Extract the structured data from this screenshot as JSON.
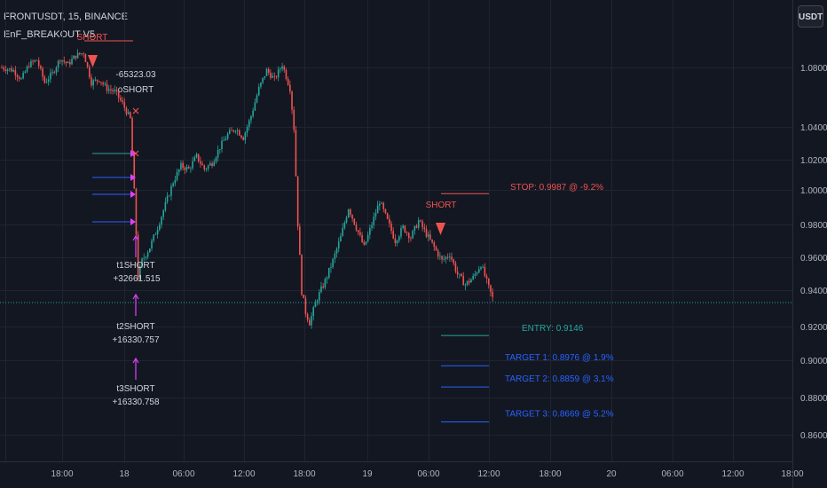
{
  "header": {
    "symbol": "FRONTUSDT, 15, BINANCE",
    "indicator": "EnF_BREAKOUT V5",
    "currency_button": "USDT"
  },
  "colors": {
    "background": "#131722",
    "grid": "#1f2430",
    "up": "#26a69a",
    "down": "#ef5350",
    "stop": "#ef5350",
    "entry": "#26a69a",
    "target": "#2962ff",
    "signal": "#e040fb",
    "axis_text": "#b2b5be"
  },
  "chart_data": {
    "type": "candlestick",
    "y_scale": "log",
    "grid": true,
    "x_ticks": [
      "18:00",
      "18",
      "06:00",
      "12:00",
      "18:00",
      "19",
      "06:00",
      "12:00",
      "18:00",
      "20",
      "06:00",
      "12:00",
      "18:00"
    ],
    "y_ticks": [
      "1.0800",
      "1.0400",
      "1.0200",
      "1.0000",
      "0.9800",
      "0.9600",
      "0.9400",
      "0.9200",
      "0.9000",
      "0.8800",
      "0.8600"
    ],
    "price_line": 0.9335,
    "trade_levels": [
      {
        "name": "stop",
        "label": "STOP: 0.9987 @ -9.2%",
        "value": 0.9987
      },
      {
        "name": "entry",
        "label": "ENTRY: 0.9146",
        "value": 0.9146
      },
      {
        "name": "target-1",
        "label": "TARGET 1: 0.8976 @ 1.9%",
        "value": 0.8976
      },
      {
        "name": "target-2",
        "label": "TARGET 2: 0.8859 @ 3.1%",
        "value": 0.8859
      },
      {
        "name": "target-3",
        "label": "TARGET 3: 0.8669 @ 5.2%",
        "value": 0.8669
      }
    ],
    "annotations": [
      {
        "name": "short-label-1",
        "text": "SHORT"
      },
      {
        "name": "exit-value-label",
        "text": "-65323.03"
      },
      {
        "name": "exit-tag-label",
        "text": "oSHORT"
      },
      {
        "name": "short-label-2",
        "text": "SHORT"
      },
      {
        "name": "t1-tag-label",
        "text": "t1SHORT"
      },
      {
        "name": "t1-value-label",
        "text": "+32661.515"
      },
      {
        "name": "t2-tag-label",
        "text": "t2SHORT"
      },
      {
        "name": "t2-value-label",
        "text": "+16330.757"
      },
      {
        "name": "t3-tag-label",
        "text": "t3SHORT"
      },
      {
        "name": "t3-value-label",
        "text": "+16330.758"
      }
    ],
    "price_path": [
      [
        0,
        1.08
      ],
      [
        6,
        1.078
      ],
      [
        10,
        1.072
      ],
      [
        14,
        1.082
      ],
      [
        18,
        1.085
      ],
      [
        22,
        1.07
      ],
      [
        26,
        1.076
      ],
      [
        30,
        1.086
      ],
      [
        34,
        1.082
      ],
      [
        38,
        1.088
      ],
      [
        42,
        1.09
      ],
      [
        44,
        1.08
      ],
      [
        46,
        1.07
      ],
      [
        50,
        1.072
      ],
      [
        54,
        1.066
      ],
      [
        58,
        1.064
      ],
      [
        62,
        1.056
      ],
      [
        66,
        1.046
      ],
      [
        68,
        1.0
      ],
      [
        70,
        0.948
      ],
      [
        72,
        0.958
      ],
      [
        76,
        0.966
      ],
      [
        80,
        0.978
      ],
      [
        84,
        0.992
      ],
      [
        88,
        1.006
      ],
      [
        92,
        1.016
      ],
      [
        96,
        1.014
      ],
      [
        100,
        1.022
      ],
      [
        104,
        1.014
      ],
      [
        108,
        1.018
      ],
      [
        112,
        1.028
      ],
      [
        116,
        1.036
      ],
      [
        120,
        1.04
      ],
      [
        124,
        1.034
      ],
      [
        128,
        1.048
      ],
      [
        132,
        1.066
      ],
      [
        136,
        1.078
      ],
      [
        140,
        1.072
      ],
      [
        144,
        1.082
      ],
      [
        148,
        1.066
      ],
      [
        150,
        1.04
      ],
      [
        152,
        0.98
      ],
      [
        154,
        0.94
      ],
      [
        156,
        0.928
      ],
      [
        158,
        0.922
      ],
      [
        162,
        0.936
      ],
      [
        166,
        0.946
      ],
      [
        170,
        0.958
      ],
      [
        174,
        0.972
      ],
      [
        178,
        0.99
      ],
      [
        182,
        0.978
      ],
      [
        186,
        0.966
      ],
      [
        190,
        0.98
      ],
      [
        194,
        0.994
      ],
      [
        198,
        0.982
      ],
      [
        202,
        0.97
      ],
      [
        206,
        0.978
      ],
      [
        210,
        0.972
      ],
      [
        214,
        0.982
      ],
      [
        218,
        0.974
      ],
      [
        222,
        0.966
      ],
      [
        226,
        0.958
      ],
      [
        230,
        0.962
      ],
      [
        234,
        0.95
      ],
      [
        238,
        0.944
      ],
      [
        242,
        0.948
      ],
      [
        246,
        0.956
      ],
      [
        250,
        0.942
      ],
      [
        252,
        0.936
      ]
    ]
  }
}
